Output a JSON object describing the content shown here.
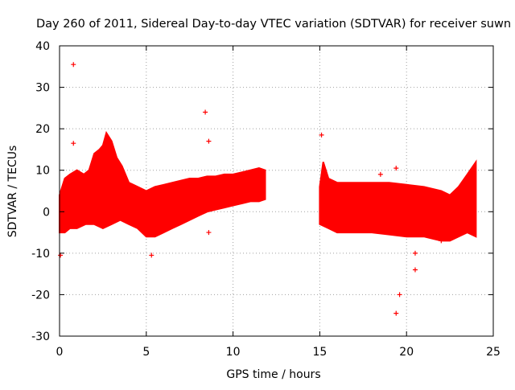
{
  "chart_data": {
    "type": "scatter",
    "title": "Day 260 of 2011, Sidereal Day-to-day VTEC variation (SDTVAR) for receiver suwn",
    "xlabel": "GPS time / hours",
    "ylabel": "SDTVAR / TECUs",
    "xlim": [
      0,
      25
    ],
    "ylim": [
      -30,
      40
    ],
    "xticks": [
      0,
      5,
      10,
      15,
      20,
      25
    ],
    "yticks": [
      -30,
      -20,
      -10,
      0,
      10,
      20,
      30,
      40
    ],
    "grid": true,
    "marker": "+",
    "color": "#ff0000",
    "series": [
      {
        "name": "suwn",
        "band_upper": [
          [
            0,
            4
          ],
          [
            0.3,
            8
          ],
          [
            0.6,
            9
          ],
          [
            1.0,
            10
          ],
          [
            1.4,
            9
          ],
          [
            1.7,
            10
          ],
          [
            2.0,
            14
          ],
          [
            2.3,
            15
          ],
          [
            2.5,
            16
          ],
          [
            2.7,
            19
          ],
          [
            3.0,
            17
          ],
          [
            3.3,
            13
          ],
          [
            3.6,
            11
          ],
          [
            4.0,
            7
          ],
          [
            4.5,
            6
          ],
          [
            5.0,
            5
          ],
          [
            5.5,
            6
          ],
          [
            6.0,
            6.5
          ],
          [
            6.5,
            7
          ],
          [
            7.0,
            7.5
          ],
          [
            7.5,
            8
          ],
          [
            8.0,
            8
          ],
          [
            8.5,
            8.5
          ],
          [
            9.0,
            8.5
          ],
          [
            9.5,
            9
          ],
          [
            10.0,
            9
          ],
          [
            10.5,
            9.5
          ],
          [
            11.0,
            10
          ],
          [
            11.5,
            10.5
          ],
          [
            11.85,
            10
          ]
        ],
        "band_lower": [
          [
            0,
            -5
          ],
          [
            0.3,
            -5
          ],
          [
            0.6,
            -4
          ],
          [
            1.0,
            -4
          ],
          [
            1.5,
            -3
          ],
          [
            2.0,
            -3
          ],
          [
            2.5,
            -4
          ],
          [
            3.0,
            -3
          ],
          [
            3.5,
            -2
          ],
          [
            4.0,
            -3
          ],
          [
            4.5,
            -4
          ],
          [
            5.0,
            -6
          ],
          [
            5.5,
            -6
          ],
          [
            6.0,
            -5
          ],
          [
            6.5,
            -4
          ],
          [
            7.0,
            -3
          ],
          [
            7.5,
            -2
          ],
          [
            8.0,
            -1
          ],
          [
            8.5,
            0
          ],
          [
            9.0,
            0.5
          ],
          [
            9.5,
            1
          ],
          [
            10.0,
            1.5
          ],
          [
            10.5,
            2
          ],
          [
            11.0,
            2.5
          ],
          [
            11.5,
            2.5
          ],
          [
            11.85,
            3
          ]
        ],
        "band2_upper": [
          [
            15.0,
            6
          ],
          [
            15.2,
            12
          ],
          [
            15.5,
            8
          ],
          [
            16.0,
            7
          ],
          [
            17.0,
            7
          ],
          [
            18.0,
            7
          ],
          [
            19.0,
            7
          ],
          [
            20.0,
            6.5
          ],
          [
            21.0,
            6
          ],
          [
            22.0,
            5
          ],
          [
            22.5,
            4
          ],
          [
            23.0,
            6
          ],
          [
            23.5,
            9
          ],
          [
            24.0,
            12
          ]
        ],
        "band2_lower": [
          [
            15.0,
            -3
          ],
          [
            15.5,
            -4
          ],
          [
            16.0,
            -5
          ],
          [
            17.0,
            -5
          ],
          [
            18.0,
            -5
          ],
          [
            19.0,
            -5.5
          ],
          [
            20.0,
            -6
          ],
          [
            21.0,
            -6
          ],
          [
            22.0,
            -7
          ],
          [
            22.5,
            -7
          ],
          [
            23.0,
            -6
          ],
          [
            23.5,
            -5
          ],
          [
            24.0,
            -6
          ]
        ],
        "outliers": [
          [
            0.05,
            -10.5
          ],
          [
            0.8,
            35.5
          ],
          [
            0.8,
            16.5
          ],
          [
            5.3,
            -10.5
          ],
          [
            8.4,
            24
          ],
          [
            8.6,
            17
          ],
          [
            8.6,
            -5
          ],
          [
            15.1,
            18.5
          ],
          [
            18.5,
            9
          ],
          [
            19.4,
            -24.5
          ],
          [
            19.4,
            10.5
          ],
          [
            19.6,
            -20
          ],
          [
            20.5,
            -14
          ],
          [
            20.5,
            -10
          ],
          [
            22.0,
            -7
          ]
        ]
      }
    ]
  }
}
